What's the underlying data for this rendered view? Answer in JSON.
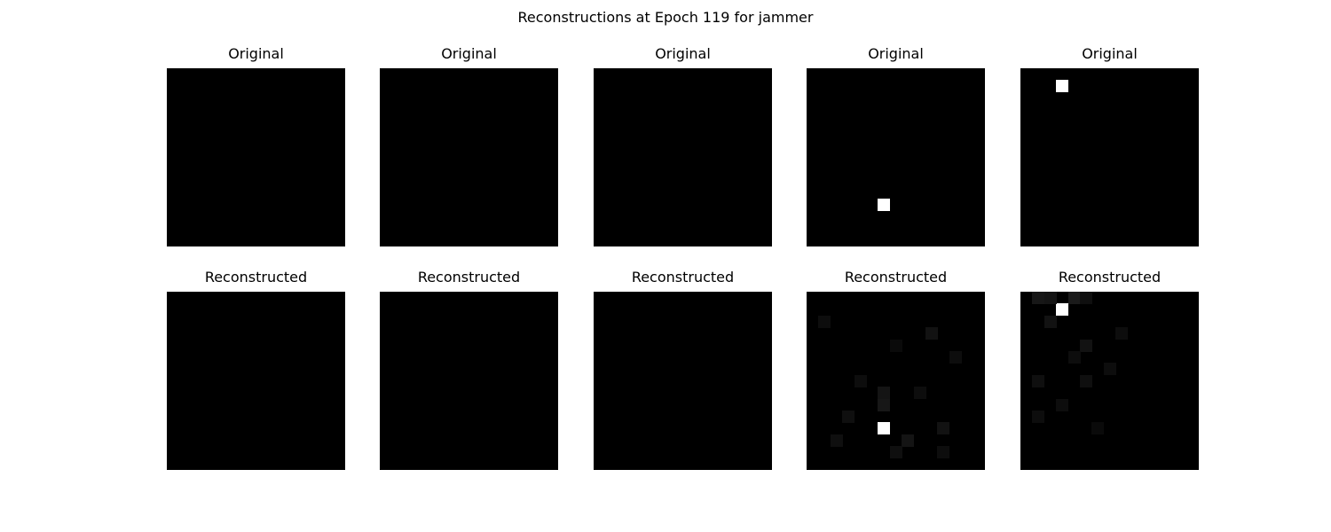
{
  "figure": {
    "title": "Reconstructions at Epoch 119 for jammer"
  },
  "rows": [
    {
      "label": "Original",
      "panels": [
        {
          "title": "Original",
          "grid_size": 15,
          "pixels": []
        },
        {
          "title": "Original",
          "grid_size": 15,
          "pixels": []
        },
        {
          "title": "Original",
          "grid_size": 15,
          "pixels": []
        },
        {
          "title": "Original",
          "grid_size": 15,
          "pixels": [
            {
              "row": 11,
              "col": 6,
              "v": 1.0
            }
          ]
        },
        {
          "title": "Original",
          "grid_size": 15,
          "pixels": [
            {
              "row": 1,
              "col": 3,
              "v": 1.0
            }
          ]
        }
      ]
    },
    {
      "label": "Reconstructed",
      "panels": [
        {
          "title": "Reconstructed",
          "grid_size": 15,
          "pixels": []
        },
        {
          "title": "Reconstructed",
          "grid_size": 15,
          "pixels": []
        },
        {
          "title": "Reconstructed",
          "grid_size": 15,
          "pixels": []
        },
        {
          "title": "Reconstructed",
          "grid_size": 15,
          "pixels": [
            {
              "row": 11,
              "col": 6,
              "v": 1.0
            },
            {
              "row": 8,
              "col": 6,
              "v": 0.08
            },
            {
              "row": 9,
              "col": 6,
              "v": 0.09
            },
            {
              "row": 3,
              "col": 10,
              "v": 0.07
            },
            {
              "row": 12,
              "col": 8,
              "v": 0.08
            },
            {
              "row": 11,
              "col": 11,
              "v": 0.07
            },
            {
              "row": 10,
              "col": 3,
              "v": 0.06
            },
            {
              "row": 13,
              "col": 7,
              "v": 0.06
            },
            {
              "row": 7,
              "col": 4,
              "v": 0.05
            },
            {
              "row": 2,
              "col": 1,
              "v": 0.05
            },
            {
              "row": 8,
              "col": 9,
              "v": 0.05
            },
            {
              "row": 5,
              "col": 12,
              "v": 0.05
            },
            {
              "row": 12,
              "col": 2,
              "v": 0.06
            },
            {
              "row": 4,
              "col": 7,
              "v": 0.04
            },
            {
              "row": 13,
              "col": 11,
              "v": 0.05
            }
          ]
        },
        {
          "title": "Reconstructed",
          "grid_size": 15,
          "pixels": [
            {
              "row": 1,
              "col": 3,
              "v": 1.0
            },
            {
              "row": 0,
              "col": 4,
              "v": 0.1
            },
            {
              "row": 0,
              "col": 2,
              "v": 0.08
            },
            {
              "row": 0,
              "col": 1,
              "v": 0.09
            },
            {
              "row": 2,
              "col": 2,
              "v": 0.07
            },
            {
              "row": 0,
              "col": 5,
              "v": 0.06
            },
            {
              "row": 4,
              "col": 5,
              "v": 0.07
            },
            {
              "row": 7,
              "col": 1,
              "v": 0.06
            },
            {
              "row": 7,
              "col": 5,
              "v": 0.06
            },
            {
              "row": 9,
              "col": 3,
              "v": 0.05
            },
            {
              "row": 6,
              "col": 7,
              "v": 0.05
            },
            {
              "row": 3,
              "col": 8,
              "v": 0.05
            },
            {
              "row": 10,
              "col": 1,
              "v": 0.05
            },
            {
              "row": 5,
              "col": 4,
              "v": 0.05
            },
            {
              "row": 11,
              "col": 6,
              "v": 0.04
            }
          ]
        }
      ]
    }
  ]
}
